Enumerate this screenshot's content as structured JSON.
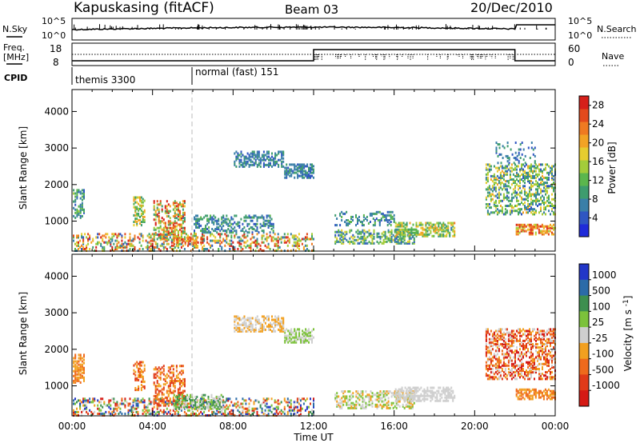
{
  "header": {
    "station": "Kapuskasing (fitACF)",
    "beam": "Beam 03",
    "date": "20/Dec/2010"
  },
  "top_panels": {
    "nsky_label": "N.Sky",
    "nsky_ticks": [
      "10^5",
      "10^0"
    ],
    "nsearch_label": "N.Search",
    "freq_label_line1": "Freq.",
    "freq_label_line2": "[MHz]",
    "freq_ticks": [
      "18",
      "8"
    ],
    "nave_ticks": [
      "60",
      "0"
    ],
    "nave_label": "Nave",
    "cpid_label": "CPID",
    "cpid_segments": [
      "themis 3300",
      "normal (fast) 151"
    ]
  },
  "chart_data": [
    {
      "type": "heatmap",
      "title": "",
      "xlabel": "Time UT",
      "ylabel": "Slant Range [km]",
      "x_ticks": [
        "00:00",
        "04:00",
        "08:00",
        "12:00",
        "16:00",
        "20:00",
        "00:00"
      ],
      "xlim_hours": [
        0,
        24
      ],
      "y_ticks": [
        1000,
        2000,
        3000,
        4000
      ],
      "ylim": [
        180,
        4600
      ],
      "colorbar": {
        "label": "Power [dB]",
        "ticks": [
          "4",
          "8",
          "12",
          "16",
          "20",
          "24",
          "28"
        ],
        "range": [
          0,
          30
        ],
        "colors": [
          "#1f2bd9",
          "#2f56c2",
          "#3a7fa8",
          "#3e9c6e",
          "#5bb64d",
          "#a3cc3a",
          "#e6cc2f",
          "#f2a324",
          "#ef7a21",
          "#e34a1c",
          "#d6201a"
        ]
      },
      "echo_regions": [
        {
          "t0": 0.0,
          "t1": 0.6,
          "r0": 1100,
          "r1": 1900,
          "dens": 0.5,
          "v0": 4,
          "v1": 14
        },
        {
          "t0": 0.0,
          "t1": 12.0,
          "r0": 200,
          "r1": 700,
          "dens": 0.35,
          "v0": 4,
          "v1": 30
        },
        {
          "t0": 3.0,
          "t1": 3.6,
          "r0": 900,
          "r1": 1700,
          "dens": 0.4,
          "v0": 8,
          "v1": 22
        },
        {
          "t0": 4.0,
          "t1": 5.6,
          "r0": 500,
          "r1": 1600,
          "dens": 0.45,
          "v0": 8,
          "v1": 30
        },
        {
          "t0": 5.0,
          "t1": 6.5,
          "r0": 380,
          "r1": 600,
          "dens": 0.6,
          "v0": 18,
          "v1": 30
        },
        {
          "t0": 6.0,
          "t1": 10.0,
          "r0": 700,
          "r1": 1200,
          "dens": 0.4,
          "v0": 4,
          "v1": 12
        },
        {
          "t0": 8.0,
          "t1": 10.5,
          "r0": 2500,
          "r1": 2950,
          "dens": 0.55,
          "v0": 4,
          "v1": 10
        },
        {
          "t0": 10.5,
          "t1": 12.0,
          "r0": 2200,
          "r1": 2600,
          "dens": 0.55,
          "v0": 4,
          "v1": 10
        },
        {
          "t0": 13.0,
          "t1": 16.0,
          "r0": 900,
          "r1": 1300,
          "dens": 0.3,
          "v0": 4,
          "v1": 12
        },
        {
          "t0": 13.0,
          "t1": 17.0,
          "r0": 400,
          "r1": 800,
          "dens": 0.45,
          "v0": 4,
          "v1": 18
        },
        {
          "t0": 16.0,
          "t1": 19.0,
          "r0": 600,
          "r1": 1000,
          "dens": 0.55,
          "v0": 8,
          "v1": 22
        },
        {
          "t0": 20.5,
          "t1": 24.0,
          "r0": 1200,
          "r1": 2600,
          "dens": 0.45,
          "v0": 4,
          "v1": 20
        },
        {
          "t0": 21.0,
          "t1": 23.0,
          "r0": 2600,
          "r1": 3200,
          "dens": 0.2,
          "v0": 4,
          "v1": 10
        },
        {
          "t0": 22.0,
          "t1": 24.0,
          "r0": 650,
          "r1": 950,
          "dens": 0.6,
          "v0": 14,
          "v1": 30
        }
      ]
    },
    {
      "type": "heatmap",
      "title": "",
      "xlabel": "Time UT",
      "ylabel": "Slant Range [km]",
      "x_ticks": [
        "00:00",
        "04:00",
        "08:00",
        "12:00",
        "16:00",
        "20:00",
        "00:00"
      ],
      "xlim_hours": [
        0,
        24
      ],
      "y_ticks": [
        1000,
        2000,
        3000,
        4000
      ],
      "ylim": [
        180,
        4600
      ],
      "colorbar": {
        "label": "Velocity [m s^-1]",
        "ticks": [
          "1000",
          "500",
          "100",
          "25",
          "-25",
          "-100",
          "-500",
          "-1000"
        ],
        "colors": [
          "#2236c8",
          "#2b6ba8",
          "#3d8f4f",
          "#7cc23b",
          "#cfcfcf",
          "#f2a020",
          "#ef6a1c",
          "#e03a18",
          "#d51a14"
        ]
      },
      "echo_regions": [
        {
          "t0": 0.0,
          "t1": 0.6,
          "r0": 1100,
          "r1": 1900,
          "dens": 0.5,
          "c": [
            5,
            6
          ]
        },
        {
          "t0": 0.0,
          "t1": 12.0,
          "r0": 200,
          "r1": 700,
          "dens": 0.35,
          "c": [
            0,
            8
          ]
        },
        {
          "t0": 3.0,
          "t1": 3.6,
          "r0": 900,
          "r1": 1700,
          "dens": 0.4,
          "c": [
            5,
            7
          ]
        },
        {
          "t0": 4.0,
          "t1": 5.6,
          "r0": 500,
          "r1": 1600,
          "dens": 0.45,
          "c": [
            5,
            7
          ]
        },
        {
          "t0": 5.0,
          "t1": 7.5,
          "r0": 380,
          "r1": 800,
          "dens": 0.55,
          "c": [
            2,
            4
          ]
        },
        {
          "t0": 8.0,
          "t1": 10.5,
          "r0": 2500,
          "r1": 2950,
          "dens": 0.55,
          "c": [
            4,
            5
          ]
        },
        {
          "t0": 10.5,
          "t1": 12.0,
          "r0": 2200,
          "r1": 2600,
          "dens": 0.55,
          "c": [
            3,
            4
          ]
        },
        {
          "t0": 13.0,
          "t1": 17.0,
          "r0": 400,
          "r1": 900,
          "dens": 0.45,
          "c": [
            3,
            5
          ]
        },
        {
          "t0": 16.0,
          "t1": 19.0,
          "r0": 600,
          "r1": 1000,
          "dens": 0.55,
          "c": [
            4,
            4
          ]
        },
        {
          "t0": 20.5,
          "t1": 24.0,
          "r0": 1200,
          "r1": 2600,
          "dens": 0.45,
          "c": [
            4,
            8
          ]
        },
        {
          "t0": 22.0,
          "t1": 24.0,
          "r0": 650,
          "r1": 950,
          "dens": 0.6,
          "c": [
            5,
            6
          ]
        }
      ]
    }
  ]
}
